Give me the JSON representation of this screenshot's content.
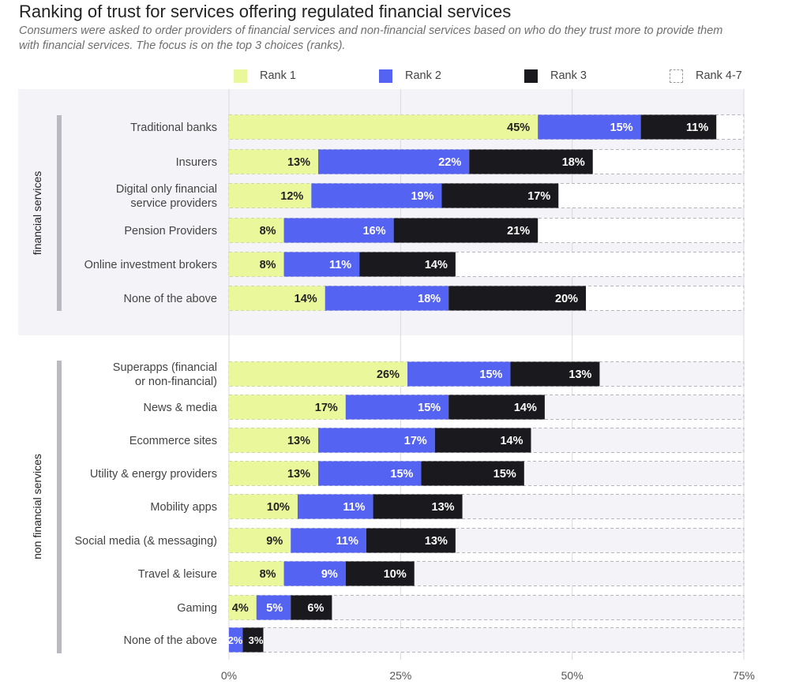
{
  "title": "Ranking of trust for services offering regulated financial services",
  "subtitle": "Consumers were asked to order providers of financial services and non-financial services based on who do they trust more to provide them with financial services. The focus is on the top 3 choices (ranks).",
  "legend": [
    {
      "label": "Rank 1",
      "color": "#eaf79a"
    },
    {
      "label": "Rank 2",
      "color": "#5563f2"
    },
    {
      "label": "Rank 3",
      "color": "#1a1a1e"
    },
    {
      "label": "Rank 4-7",
      "color": "dashed"
    }
  ],
  "colors": {
    "rank1": "#eaf79a",
    "rank2": "#5563f2",
    "rank3": "#1a1a1e",
    "group_band": "#f4f4f8",
    "group_bar": "#b9b9c2",
    "remainder_dash": "#b5b5bd"
  },
  "chart_data": {
    "type": "bar",
    "orientation": "horizontal",
    "stacked": true,
    "xlim": [
      0,
      75
    ],
    "x_ticks": [
      "0%",
      "25%",
      "50%",
      "75%"
    ],
    "grid": true,
    "legend_position": "top",
    "groups": [
      {
        "name": "financial services",
        "categories": [
          "Traditional banks",
          "Insurers",
          "Digital only financial service providers",
          "Pension Providers",
          "Online investment brokers",
          "None of the above"
        ],
        "series": [
          {
            "name": "Rank 1",
            "values": [
              45,
              13,
              12,
              8,
              8,
              14
            ]
          },
          {
            "name": "Rank 2",
            "values": [
              15,
              22,
              19,
              16,
              11,
              18
            ]
          },
          {
            "name": "Rank 3",
            "values": [
              11,
              18,
              17,
              21,
              14,
              20
            ]
          }
        ]
      },
      {
        "name": "non financial services",
        "categories": [
          "Superapps (financial or non-financial)",
          "News & media",
          "Ecommerce sites",
          "Utility & energy providers",
          "Mobility apps",
          "Social media (& messaging)",
          "Travel & leisure",
          "Gaming",
          "None of the above"
        ],
        "series": [
          {
            "name": "Rank 1",
            "values": [
              26,
              17,
              13,
              13,
              10,
              9,
              8,
              4,
              0
            ]
          },
          {
            "name": "Rank 2",
            "values": [
              15,
              15,
              17,
              15,
              11,
              11,
              9,
              5,
              2
            ]
          },
          {
            "name": "Rank 3",
            "values": [
              13,
              14,
              14,
              15,
              13,
              13,
              10,
              6,
              3
            ]
          }
        ]
      }
    ]
  }
}
